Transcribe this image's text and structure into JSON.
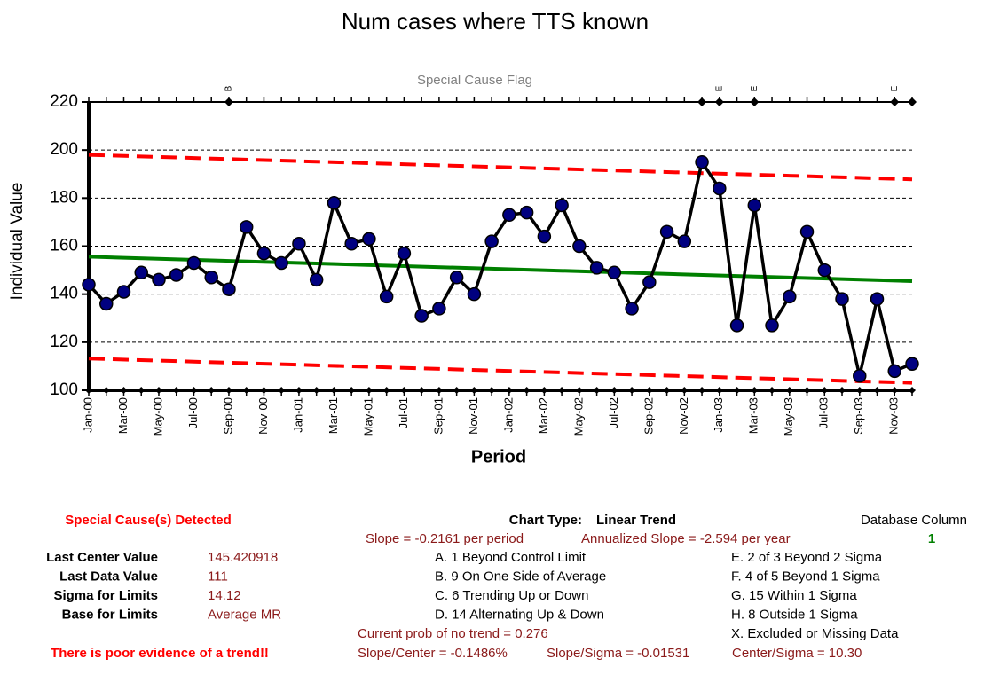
{
  "chart_data": {
    "type": "line",
    "title": "Num cases where TTS known",
    "flag_title": "Special Cause Flag",
    "xlabel": "Period",
    "ylabel": "Individual Value",
    "categories": [
      "Jan-00",
      null,
      "Mar-00",
      null,
      "May-00",
      null,
      "Jul-00",
      null,
      "Sep-00",
      null,
      "Nov-00",
      null,
      "Jan-01",
      null,
      "Mar-01",
      null,
      "May-01",
      null,
      "Jul-01",
      null,
      "Sep-01",
      null,
      "Nov-01",
      null,
      "Jan-02",
      null,
      "Mar-02",
      null,
      "May-02",
      null,
      "Jul-02",
      null,
      "Sep-02",
      null,
      "Nov-02",
      null,
      "Jan-03",
      null,
      "Mar-03",
      null,
      "May-03",
      null,
      "Jul-03",
      null,
      "Sep-03",
      null,
      "Nov-03",
      null
    ],
    "series": [
      {
        "color": "#000000",
        "marker_color": "#000080",
        "values": [
          144,
          136,
          141,
          149,
          146,
          148,
          153,
          147,
          142,
          168,
          157,
          153,
          161,
          146,
          178,
          161,
          163,
          139,
          157,
          131,
          134,
          147,
          140,
          162,
          173,
          174,
          164,
          177,
          160,
          151,
          149,
          134,
          145,
          166,
          162,
          195,
          184,
          127,
          177,
          127,
          139,
          166,
          150,
          138,
          106,
          138,
          108,
          111
        ]
      }
    ],
    "center_line": {
      "color": "#008000",
      "values": [
        155.6,
        145.42
      ]
    },
    "upper_limit": {
      "color": "#ff0000",
      "values": [
        198,
        187.8
      ]
    },
    "lower_limit": {
      "color": "#ff0000",
      "values": [
        113.2,
        103.1
      ]
    },
    "flags": [
      {
        "index": 8,
        "label": "B"
      },
      {
        "index": 35
      },
      {
        "index": 36,
        "label": "E"
      },
      {
        "index": 38,
        "label": "E"
      },
      {
        "index": 46,
        "label": "E"
      },
      {
        "index": 47
      }
    ],
    "ylim": [
      100,
      220
    ],
    "yticks": [
      100,
      120,
      140,
      160,
      180,
      200,
      220
    ],
    "grid": true
  },
  "panel": {
    "detected": "Special Cause(s) Detected",
    "chart_type_label": "Chart Type:",
    "chart_type": "Linear Trend",
    "db_column_label": "Database Column",
    "db_column": "1",
    "slope": "Slope = -0.2161 per period",
    "annualized_slope": "Annualized Slope = -2.594 per year",
    "stats": [
      {
        "label": "Last Center Value",
        "value": "145.420918"
      },
      {
        "label": "Last Data Value",
        "value": "111"
      },
      {
        "label": "Sigma for Limits",
        "value": "14.12"
      },
      {
        "label": "Base for Limits",
        "value": "Average MR"
      }
    ],
    "rules_left": [
      "A. 1 Beyond Control Limit",
      "B. 9 On One Side of Average",
      "C. 6 Trending Up or Down",
      "D. 14 Alternating  Up & Down"
    ],
    "rules_right": [
      "E.  2 of 3 Beyond 2 Sigma",
      "F.  4 of 5 Beyond 1 Sigma",
      "G.  15 Within 1 Sigma",
      "H.  8 Outside 1 Sigma",
      "X.  Excluded or Missing Data"
    ],
    "prob": "Current prob of no trend = 0.276",
    "evidence": "There is poor evidence of a trend!!",
    "slope_center": "Slope/Center = -0.1486%",
    "slope_sigma": "Slope/Sigma = -0.01531",
    "center_sigma": "Center/Sigma = 10.30"
  }
}
